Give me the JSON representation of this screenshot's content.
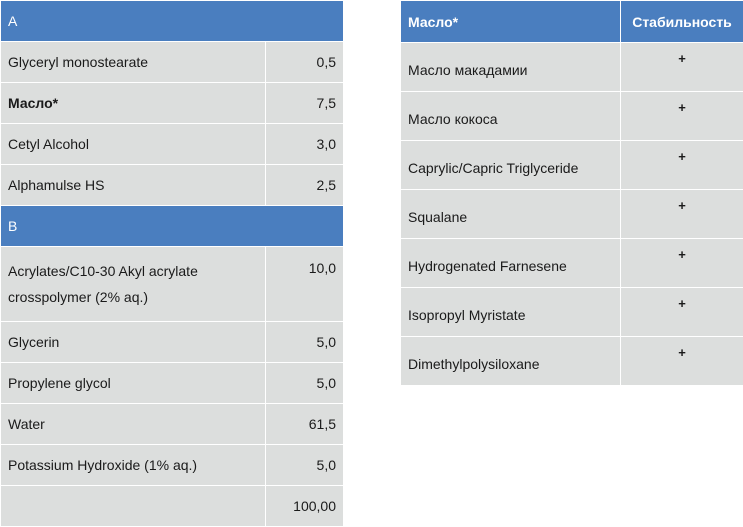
{
  "formula": {
    "phase_a": {
      "label": "A",
      "rows": [
        {
          "name": "Glyceryl monostearate",
          "value": "0,5"
        },
        {
          "name": "Масло*",
          "value": "7,5"
        },
        {
          "name": "Cetyl Alcohol",
          "value": "3,0"
        },
        {
          "name": "Alphamulse HS",
          "value": "2,5"
        }
      ]
    },
    "phase_b": {
      "label": "B",
      "rows": [
        {
          "name": "Acrylates/C10-30 Akyl acrylate crosspolymer (2% aq.)",
          "value": "10,0"
        },
        {
          "name": "Glycerin",
          "value": "5,0"
        },
        {
          "name": "Propylene glycol",
          "value": "5,0"
        },
        {
          "name": "Water",
          "value": "61,5"
        },
        {
          "name": "Potassium Hydroxide (1% aq.)",
          "value": "5,0"
        }
      ]
    },
    "total": {
      "name": "",
      "value": "100,00"
    }
  },
  "stability": {
    "headers": {
      "oil": "Масло*",
      "stability": "Стабильность"
    },
    "rows": [
      {
        "oil": "Масло макадамии",
        "mark": "+"
      },
      {
        "oil": "Масло кокоса",
        "mark": "+"
      },
      {
        "oil": "Caprylic/Capric Triglyceride",
        "mark": "+"
      },
      {
        "oil": "Squalane",
        "mark": "+"
      },
      {
        "oil": "Hydrogenated Farnesene",
        "mark": "+"
      },
      {
        "oil": "Isopropyl Myristate",
        "mark": "+"
      },
      {
        "oil": "Dimethylpolysiloxane",
        "mark": "+"
      }
    ]
  }
}
